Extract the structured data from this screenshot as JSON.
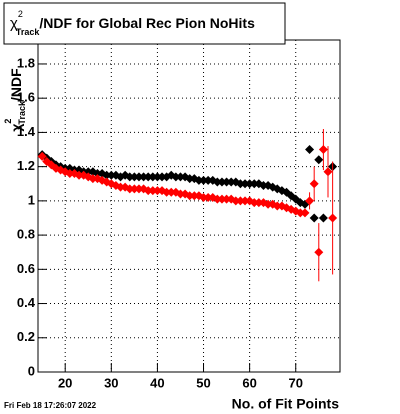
{
  "chart_data": {
    "type": "scatter",
    "title": {
      "symbol": "χ",
      "sup": "2",
      "sub": "Track",
      "text": "/NDF for Global Rec Pion NoHits"
    },
    "y_label": {
      "symbol": "χ",
      "sup": "2",
      "sub": "Track",
      "text": "/NDF"
    },
    "x_label": "No. of Fit Points",
    "footer": "Fri Feb 18 17:26:07 2022",
    "grid": true,
    "xlim": [
      14.1,
      79.6
    ],
    "ylim": [
      0,
      1.94
    ],
    "xticks": [
      20,
      30,
      40,
      50,
      60,
      70
    ],
    "yticks": [
      0,
      0.2,
      0.4,
      0.6,
      0.8,
      1,
      1.2,
      1.4,
      1.6,
      1.8
    ],
    "x": [
      15,
      16,
      17,
      18,
      19,
      20,
      21,
      22,
      23,
      24,
      25,
      26,
      27,
      28,
      29,
      30,
      31,
      32,
      33,
      34,
      35,
      36,
      37,
      38,
      39,
      40,
      41,
      42,
      43,
      44,
      45,
      46,
      47,
      48,
      49,
      50,
      51,
      52,
      53,
      54,
      55,
      56,
      57,
      58,
      59,
      60,
      61,
      62,
      63,
      64,
      65,
      66,
      67,
      68,
      69,
      70,
      71,
      72,
      73,
      74,
      75,
      76,
      77,
      78
    ],
    "series": [
      {
        "color": "#000000",
        "values": [
          1.27,
          1.25,
          1.23,
          1.21,
          1.2,
          1.19,
          1.19,
          1.18,
          1.18,
          1.17,
          1.17,
          1.17,
          1.16,
          1.16,
          1.15,
          1.15,
          1.15,
          1.14,
          1.15,
          1.14,
          1.14,
          1.14,
          1.14,
          1.14,
          1.14,
          1.14,
          1.14,
          1.14,
          1.15,
          1.14,
          1.14,
          1.14,
          1.13,
          1.13,
          1.12,
          1.12,
          1.12,
          1.12,
          1.11,
          1.11,
          1.11,
          1.11,
          1.11,
          1.1,
          1.1,
          1.1,
          1.1,
          1.1,
          1.09,
          1.09,
          1.08,
          1.07,
          1.06,
          1.05,
          1.03,
          1.01,
          0.99,
          0.98,
          1.3,
          0.9,
          1.24,
          0.9,
          null,
          1.2
        ]
      },
      {
        "color": "#ff0000",
        "values": [
          1.26,
          1.23,
          1.21,
          1.19,
          1.18,
          1.17,
          1.16,
          1.16,
          1.15,
          1.15,
          1.14,
          1.13,
          1.13,
          1.12,
          1.11,
          1.1,
          1.09,
          1.08,
          1.08,
          1.07,
          1.07,
          1.07,
          1.07,
          1.06,
          1.06,
          1.06,
          1.06,
          1.05,
          1.05,
          1.05,
          1.04,
          1.04,
          1.03,
          1.03,
          1.03,
          1.02,
          1.02,
          1.02,
          1.01,
          1.01,
          1.01,
          1.01,
          1.0,
          1.0,
          1.0,
          1.0,
          0.99,
          0.99,
          0.99,
          0.98,
          0.98,
          0.97,
          0.97,
          0.96,
          0.95,
          0.94,
          0.93,
          0.93,
          1.0,
          1.1,
          0.7,
          1.3,
          1.17,
          0.9
        ],
        "errors": [
          null,
          null,
          null,
          null,
          null,
          null,
          null,
          null,
          null,
          null,
          null,
          null,
          null,
          null,
          null,
          null,
          null,
          null,
          null,
          null,
          null,
          null,
          null,
          null,
          null,
          null,
          null,
          null,
          null,
          null,
          null,
          null,
          null,
          null,
          null,
          null,
          null,
          null,
          null,
          null,
          null,
          null,
          null,
          null,
          null,
          null,
          null,
          null,
          null,
          null,
          null,
          null,
          null,
          null,
          null,
          null,
          null,
          null,
          0.05,
          0.1,
          0.17,
          0.12,
          0.15,
          0.33
        ]
      }
    ]
  }
}
